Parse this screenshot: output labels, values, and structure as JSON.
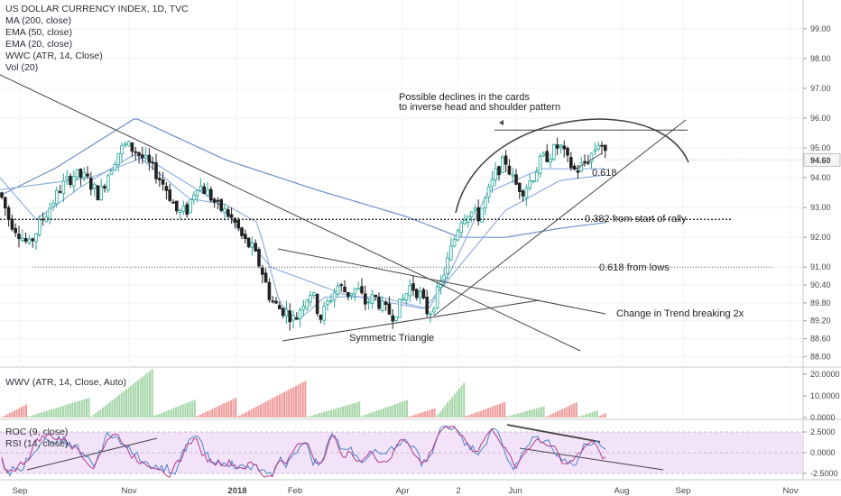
{
  "chart_data": {
    "type": "candlestick",
    "title": "US DOLLAR CURRENCY INDEX, 1D, TVC",
    "indicators": [
      "MA (200, close)",
      "EMA (50, close)",
      "EMA (20, close)",
      "WWC (ATR, 14, Close)",
      "Vol (20)"
    ],
    "ylim": [
      87.8,
      99.6
    ],
    "y_ticks": [
      "99.00",
      "98.00",
      "97.00",
      "96.00",
      "95.00",
      "94.00",
      "93.00",
      "92.00",
      "91.00",
      "90.40",
      "89.80",
      "89.20",
      "88.60",
      "88.00"
    ],
    "y_tick_values": [
      99,
      98,
      97,
      96,
      95,
      94,
      93,
      92,
      91,
      90.4,
      89.8,
      89.2,
      88.6,
      88
    ],
    "last_price": "94.60",
    "x_ticks": [
      "Sep",
      "Nov",
      "2018",
      "Feb",
      "Apr",
      "2",
      "Jun",
      "Aug",
      "Sep",
      "Nov"
    ],
    "series_anchors": {
      "price": [
        [
          0,
          93.5
        ],
        [
          10,
          92.6
        ],
        [
          20,
          92.2
        ],
        [
          32,
          91.7
        ],
        [
          45,
          92.5
        ],
        [
          55,
          93.0
        ],
        [
          68,
          93.7
        ],
        [
          82,
          94.1
        ],
        [
          95,
          94.0
        ],
        [
          110,
          93.4
        ],
        [
          122,
          94.3
        ],
        [
          132,
          94.9
        ],
        [
          140,
          95.1
        ],
        [
          150,
          94.9
        ],
        [
          160,
          94.6
        ],
        [
          172,
          94.2
        ],
        [
          185,
          93.6
        ],
        [
          197,
          92.8
        ],
        [
          207,
          92.9
        ],
        [
          218,
          93.8
        ],
        [
          230,
          93.5
        ],
        [
          242,
          93.0
        ],
        [
          252,
          92.8
        ],
        [
          262,
          92.4
        ],
        [
          270,
          91.9
        ],
        [
          280,
          91.6
        ],
        [
          290,
          90.9
        ],
        [
          300,
          89.9
        ],
        [
          310,
          89.6
        ],
        [
          318,
          89.5
        ],
        [
          327,
          89.2
        ],
        [
          335,
          89.8
        ],
        [
          345,
          90.2
        ],
        [
          355,
          89.3
        ],
        [
          365,
          89.9
        ],
        [
          375,
          90.4
        ],
        [
          385,
          90.1
        ],
        [
          395,
          90.3
        ],
        [
          405,
          89.8
        ],
        [
          415,
          90.0
        ],
        [
          425,
          89.6
        ],
        [
          435,
          89.4
        ],
        [
          445,
          89.8
        ],
        [
          455,
          90.4
        ],
        [
          465,
          90.1
        ],
        [
          475,
          89.4
        ],
        [
          482,
          89.9
        ],
        [
          490,
          90.6
        ],
        [
          500,
          91.6
        ],
        [
          510,
          92.6
        ],
        [
          520,
          92.9
        ],
        [
          530,
          92.7
        ],
        [
          540,
          93.4
        ],
        [
          550,
          94.2
        ],
        [
          560,
          94.6
        ],
        [
          570,
          93.8
        ],
        [
          580,
          93.6
        ],
        [
          590,
          94.0
        ],
        [
          600,
          94.6
        ],
        [
          610,
          94.8
        ],
        [
          620,
          95.1
        ],
        [
          628,
          94.6
        ],
        [
          638,
          94.2
        ],
        [
          648,
          94.5
        ],
        [
          658,
          94.9
        ],
        [
          665,
          95.3
        ],
        [
          672,
          94.6
        ]
      ],
      "ma200": [
        [
          0,
          93.4
        ],
        [
          60,
          94.3
        ],
        [
          150,
          96.0
        ],
        [
          250,
          94.6
        ],
        [
          350,
          93.6
        ],
        [
          450,
          92.7
        ],
        [
          510,
          92.0
        ],
        [
          560,
          92.0
        ],
        [
          620,
          92.3
        ],
        [
          672,
          92.5
        ]
      ],
      "ema50": [
        [
          0,
          93.6
        ],
        [
          100,
          94.0
        ],
        [
          160,
          94.7
        ],
        [
          240,
          93.2
        ],
        [
          300,
          91.0
        ],
        [
          380,
          90.1
        ],
        [
          470,
          89.6
        ],
        [
          500,
          90.7
        ],
        [
          560,
          92.9
        ],
        [
          620,
          93.9
        ],
        [
          672,
          94.1
        ]
      ],
      "ema20": [
        [
          0,
          94.0
        ],
        [
          40,
          92.6
        ],
        [
          90,
          93.7
        ],
        [
          150,
          94.8
        ],
        [
          210,
          93.3
        ],
        [
          250,
          93.1
        ],
        [
          285,
          92.5
        ],
        [
          310,
          89.8
        ],
        [
          330,
          89.2
        ],
        [
          360,
          90.0
        ],
        [
          420,
          90.0
        ],
        [
          475,
          89.6
        ],
        [
          500,
          90.9
        ],
        [
          540,
          93.5
        ],
        [
          600,
          94.3
        ],
        [
          640,
          94.3
        ],
        [
          672,
          94.3
        ]
      ]
    },
    "annotations": [
      "Possible declines in the cards",
      "to inverse head and shoulder pattern",
      "0.618",
      "0.382 from start of rally",
      "0.618 from lows",
      "Change in Trend breaking 2x",
      "Symmetric Triangle"
    ],
    "levels": {
      "fib_0382": 92.6,
      "fib_0618_lows": 91.0,
      "neckline": 95.6
    },
    "wwv_pane": {
      "label": "WWV (ATR, 14, Close, Auto)",
      "y_ticks": [
        "20.0000",
        "10.0000",
        "0.0000"
      ],
      "y_tick_values": [
        20,
        10,
        0
      ]
    },
    "osc_pane": {
      "labels": [
        "ROC (9, close)",
        "RSI (14, close)"
      ],
      "y_ticks": [
        "2.5000",
        "0.0000",
        "-2.5000"
      ],
      "y_tick_values": [
        2.5,
        0,
        -2.5
      ]
    },
    "colors": {
      "up": "#26a69a",
      "down": "#222222",
      "ma": "#6c8fc8",
      "ema": "#8fb0de",
      "rsi_band": "#f0dcf7",
      "rsi": "#b03a8c",
      "roc": "#4a86c6",
      "vol_up": "#a5d6a7",
      "vol_down": "#ef9a9a",
      "last_price_bg": "#f5f5f5"
    }
  }
}
